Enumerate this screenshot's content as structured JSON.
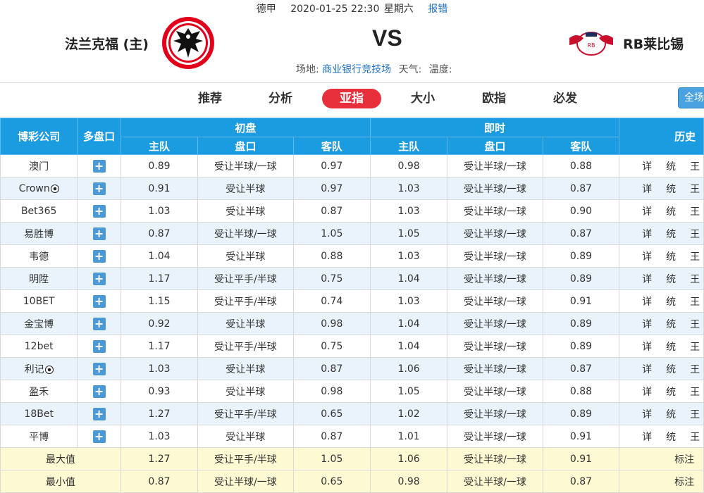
{
  "match": {
    "league": "德甲",
    "datetime": "2020-01-25 22:30",
    "weekday": "星期六",
    "report": "报错",
    "home": "法兰克福 (主)",
    "away": "RB莱比锡",
    "vs": "VS",
    "venue_label": "场地:",
    "venue": "商业银行竞技场",
    "weather_label": "天气:",
    "temp_label": "温度:"
  },
  "tabs": [
    {
      "label": "推荐"
    },
    {
      "label": "分析"
    },
    {
      "label": "亚指",
      "active": true
    },
    {
      "label": "大小"
    },
    {
      "label": "欧指"
    },
    {
      "label": "必发"
    }
  ],
  "tab_all": "全场",
  "table": {
    "headers": {
      "company": "博彩公司",
      "multi": "多盘口",
      "initial": "初盘",
      "live": "即时",
      "history": "历史",
      "home": "主队",
      "handicap": "盘口",
      "away": "客队"
    },
    "rows": [
      {
        "company": "澳门",
        "ball": false,
        "i_home": "0.89",
        "i_hcp": "受让半球/一球",
        "i_away": "0.97",
        "l_home": "0.98",
        "l_hcp": "受让半球/一球",
        "l_away": "0.88"
      },
      {
        "company": "Crown",
        "ball": true,
        "i_home": "0.91",
        "i_hcp": "受让半球",
        "i_away": "0.97",
        "l_home": "1.03",
        "l_hcp": "受让半球/一球",
        "l_away": "0.87"
      },
      {
        "company": "Bet365",
        "ball": false,
        "i_home": "1.03",
        "i_hcp": "受让半球",
        "i_away": "0.87",
        "l_home": "1.03",
        "l_hcp": "受让半球/一球",
        "l_away": "0.90"
      },
      {
        "company": "易胜博",
        "ball": false,
        "i_home": "0.87",
        "i_hcp": "受让半球/一球",
        "i_away": "1.05",
        "l_home": "1.05",
        "l_hcp": "受让半球/一球",
        "l_away": "0.87"
      },
      {
        "company": "韦德",
        "ball": false,
        "i_home": "1.04",
        "i_hcp": "受让半球",
        "i_away": "0.88",
        "l_home": "1.03",
        "l_hcp": "受让半球/一球",
        "l_away": "0.89"
      },
      {
        "company": "明陞",
        "ball": false,
        "i_home": "1.17",
        "i_hcp": "受让平手/半球",
        "i_away": "0.75",
        "l_home": "1.04",
        "l_hcp": "受让半球/一球",
        "l_away": "0.89"
      },
      {
        "company": "10BET",
        "ball": false,
        "i_home": "1.15",
        "i_hcp": "受让平手/半球",
        "i_away": "0.74",
        "l_home": "1.03",
        "l_hcp": "受让半球/一球",
        "l_away": "0.91"
      },
      {
        "company": "金宝博",
        "ball": false,
        "i_home": "0.92",
        "i_hcp": "受让半球",
        "i_away": "0.98",
        "l_home": "1.04",
        "l_hcp": "受让半球/一球",
        "l_away": "0.89"
      },
      {
        "company": "12bet",
        "ball": false,
        "i_home": "1.17",
        "i_hcp": "受让平手/半球",
        "i_away": "0.75",
        "l_home": "1.04",
        "l_hcp": "受让半球/一球",
        "l_away": "0.89"
      },
      {
        "company": "利记",
        "ball": true,
        "i_home": "1.03",
        "i_hcp": "受让半球",
        "i_away": "0.87",
        "l_home": "1.06",
        "l_hcp": "受让半球/一球",
        "l_away": "0.87"
      },
      {
        "company": "盈禾",
        "ball": false,
        "i_home": "0.93",
        "i_hcp": "受让半球",
        "i_away": "0.98",
        "l_home": "1.05",
        "l_hcp": "受让半球/一球",
        "l_away": "0.88"
      },
      {
        "company": "18Bet",
        "ball": false,
        "i_home": "1.27",
        "i_hcp": "受让平手/半球",
        "i_away": "0.65",
        "l_home": "1.02",
        "l_hcp": "受让半球/一球",
        "l_away": "0.89"
      },
      {
        "company": "平博",
        "ball": false,
        "i_home": "1.03",
        "i_hcp": "受让半球",
        "i_away": "0.87",
        "l_home": "1.01",
        "l_hcp": "受让半球/一球",
        "l_away": "0.91"
      }
    ],
    "history_links": [
      "详",
      "统",
      "王"
    ],
    "summary": [
      {
        "label": "最大值",
        "i_home": "1.27",
        "i_hcp": "受让平手/半球",
        "i_away": "1.05",
        "l_home": "1.06",
        "l_hcp": "受让半球/一球",
        "l_away": "0.91",
        "hist": "标注"
      },
      {
        "label": "最小值",
        "i_home": "0.87",
        "i_hcp": "受让半球/一球",
        "i_away": "0.65",
        "l_home": "0.98",
        "l_hcp": "受让半球/一球",
        "l_away": "0.87",
        "hist": "标注"
      }
    ]
  },
  "colors": {
    "header_blue": "#1b9be0",
    "active_tab": "#e8303c",
    "link_blue": "#1e6fc0",
    "alt_row": "#eaf3fb",
    "summary_row": "#fdf9d2"
  }
}
